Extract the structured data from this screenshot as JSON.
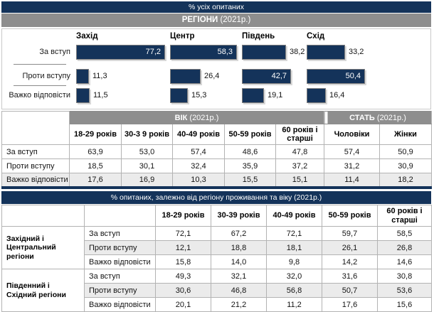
{
  "top_band": {
    "title": "% усіх опитаних"
  },
  "regions_band": {
    "bold": "РЕГІОНИ",
    "rest": " (2021р.)"
  },
  "middle_band": {
    "title": "% опитаних, залежно від регіону проживання та віку (2021р.)"
  },
  "colors": {
    "navy": "#14335a",
    "gray_band": "#8e8e8e",
    "row_shade": "#ebebeb",
    "bar": "#14335a"
  },
  "chart_data": [
    {
      "type": "bar",
      "title": "РЕГІОНИ (2021р.)",
      "subtitle": "% усіх опитаних",
      "orientation": "horizontal",
      "xlim": [
        0,
        100
      ],
      "categories": [
        "За вступ",
        "Проти вступу",
        "Важко відповісти"
      ],
      "series": [
        {
          "name": "Захід",
          "values": [
            77.2,
            11.3,
            11.5
          ]
        },
        {
          "name": "Центр",
          "values": [
            58.3,
            26.4,
            15.3
          ]
        },
        {
          "name": "Південь",
          "values": [
            38.2,
            42.7,
            19.1
          ]
        },
        {
          "name": "Схід",
          "values": [
            33.2,
            50.4,
            16.4
          ]
        }
      ],
      "value_label_format": "comma-decimal, 1 digit",
      "legend_position": "none",
      "grid": false
    },
    {
      "type": "table",
      "bands": {
        "age_bold": "ВІК",
        "age_rest": " (2021р.)",
        "sex_bold": "СТАТЬ",
        "sex_rest": " (2021р.)"
      },
      "columns": [
        "18-29 років",
        "30-3 9 років",
        "40-49 років",
        "50-59 років",
        "60 років і старші",
        "Чоловіки",
        "Жінки"
      ],
      "rows": [
        {
          "label": "За вступ",
          "values": [
            63.9,
            53.0,
            57.4,
            48.6,
            47.8,
            57.4,
            50.9
          ],
          "shaded": false
        },
        {
          "label": "Проти вступу",
          "values": [
            18.5,
            30.1,
            32.4,
            35.9,
            37.2,
            31.2,
            30.9
          ],
          "shaded": false
        },
        {
          "label": "Важко відповісти",
          "values": [
            17.6,
            16.9,
            10.3,
            15.5,
            15.1,
            11.4,
            18.2
          ],
          "shaded": true
        }
      ]
    },
    {
      "type": "table",
      "title": "% опитаних, залежно від регіону проживання та віку (2021р.)",
      "columns": [
        "18-29 років",
        "30-39 років",
        "40-49 років",
        "50-59 років",
        "60 років і старші"
      ],
      "groups": [
        {
          "label": "Західний і Центральний регіони",
          "rows": [
            {
              "label": "За вступ",
              "values": [
                72.1,
                67.2,
                72.1,
                59.7,
                58.5
              ],
              "shaded": false
            },
            {
              "label": "Проти вступу",
              "values": [
                12.1,
                18.8,
                18.1,
                26.1,
                26.8
              ],
              "shaded": true
            },
            {
              "label": "Важко відповісти",
              "values": [
                15.8,
                14.0,
                9.8,
                14.2,
                14.6
              ],
              "shaded": false
            }
          ]
        },
        {
          "label": "Південний і Східний регіони",
          "rows": [
            {
              "label": "За вступ",
              "values": [
                49.3,
                32.1,
                32.0,
                31.6,
                30.8
              ],
              "shaded": false
            },
            {
              "label": "Проти вступу",
              "values": [
                30.6,
                46.8,
                56.8,
                50.7,
                53.6
              ],
              "shaded": true
            },
            {
              "label": "Важко відповісти",
              "values": [
                20.1,
                21.2,
                11.2,
                17.6,
                15.6
              ],
              "shaded": false
            }
          ]
        }
      ]
    }
  ]
}
